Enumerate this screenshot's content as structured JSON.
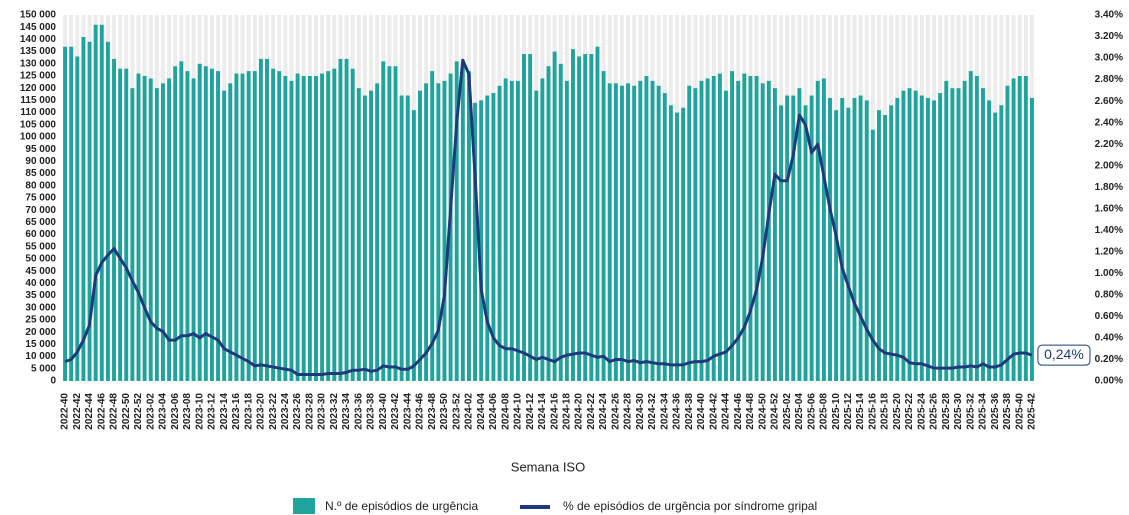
{
  "chart_data": {
    "type": "bar-line",
    "x_label": "Semana ISO",
    "categories": [
      "2022-40",
      null,
      "2022-42",
      null,
      "2022-44",
      null,
      "2022-46",
      null,
      "2022-48",
      null,
      "2022-50",
      null,
      "2022-52",
      null,
      "2023-02",
      null,
      "2023-04",
      null,
      "2023-06",
      null,
      "2023-08",
      null,
      "2023-10",
      null,
      "2023-12",
      null,
      "2023-14",
      null,
      "2023-16",
      null,
      "2023-18",
      null,
      "2023-20",
      null,
      "2023-22",
      null,
      "2023-24",
      null,
      "2023-26",
      null,
      "2023-28",
      null,
      "2023-30",
      null,
      "2023-32",
      null,
      "2023-34",
      null,
      "2023-36",
      null,
      "2023-38",
      null,
      "2023-40",
      null,
      "2023-42",
      null,
      "2023-44",
      null,
      "2023-46",
      null,
      "2023-48",
      null,
      "2023-50",
      null,
      "2023-52",
      null,
      "2024-02",
      null,
      "2024-04",
      null,
      "2024-06",
      null,
      "2024-08",
      null,
      "2024-10",
      null,
      "2024-12",
      null,
      "2024-14",
      null,
      "2024-16",
      null,
      "2024-18",
      null,
      "2024-20",
      null,
      "2024-22",
      null,
      "2024-24",
      null,
      "2024-26",
      null,
      "2024-28",
      null,
      "2024-30",
      null,
      "2024-32",
      null,
      "2024-34",
      null,
      "2024-36",
      null,
      "2024-38",
      null,
      "2024-40",
      null,
      "2024-42",
      null,
      "2024-44",
      null,
      "2024-46",
      null,
      "2024-48",
      null,
      "2024-50",
      null,
      "2024-52",
      null,
      "2025-02",
      null,
      "2025-04",
      null,
      "2025-06",
      null,
      "2025-08",
      null,
      "2025-10",
      null,
      "2025-12",
      null,
      "2025-14",
      null,
      "2025-16",
      null,
      "2025-18",
      null,
      "2025-20",
      null,
      "2025-22",
      null,
      "2025-24",
      null,
      "2025-26",
      null,
      "2025-28",
      null,
      "2025-30",
      null,
      "2025-32",
      null,
      "2025-34",
      null,
      "2025-36",
      null,
      "2025-38",
      null,
      "2025-40",
      null,
      "2025-42"
    ],
    "series": [
      {
        "name": "N.º de episódios de urgência",
        "color": "#1ea49c",
        "kind": "bar",
        "values": [
          137000,
          137000,
          133000,
          141000,
          139000,
          146000,
          146000,
          139000,
          132000,
          128000,
          128000,
          120000,
          126000,
          125000,
          124000,
          120000,
          122000,
          124000,
          129000,
          131000,
          127000,
          124000,
          130000,
          129000,
          128000,
          127000,
          119000,
          122000,
          126000,
          126000,
          127000,
          127000,
          132000,
          132000,
          128000,
          127000,
          125000,
          123000,
          126000,
          125000,
          125000,
          125000,
          126000,
          127000,
          128000,
          132000,
          132000,
          128000,
          120000,
          117000,
          119000,
          122000,
          131000,
          129000,
          129000,
          117000,
          117000,
          111000,
          119000,
          122000,
          127000,
          122000,
          123000,
          126000,
          131000,
          130000,
          127000,
          114000,
          115000,
          117000,
          118000,
          121000,
          124000,
          123000,
          123000,
          134000,
          134000,
          119000,
          124000,
          129000,
          135000,
          130000,
          123000,
          136000,
          133000,
          134000,
          134000,
          137000,
          127000,
          122000,
          122000,
          121000,
          122000,
          121000,
          123000,
          125000,
          123000,
          121000,
          118000,
          113000,
          110000,
          112000,
          121000,
          120000,
          123000,
          124000,
          125000,
          126000,
          119000,
          127000,
          123000,
          126000,
          125000,
          125000,
          122000,
          123000,
          120000,
          113000,
          117000,
          117000,
          120000,
          113000,
          117000,
          123000,
          124000,
          116000,
          111000,
          116000,
          112000,
          116000,
          117000,
          115000,
          103000,
          111000,
          109000,
          113000,
          116000,
          119000,
          120000,
          119000,
          117000,
          116000,
          115000,
          118000,
          123000,
          120000,
          120000,
          123000,
          127000,
          125000,
          120000,
          115000,
          110000,
          113000,
          121000,
          124000,
          125000,
          125000,
          116000
        ]
      },
      {
        "name": "% de episódios de urgência por síndrome gripal",
        "color": "#1f3a7c",
        "kind": "line",
        "axis": "y2",
        "values": [
          0.18,
          0.2,
          0.27,
          0.38,
          0.52,
          0.98,
          1.1,
          1.17,
          1.23,
          1.14,
          1.05,
          0.93,
          0.82,
          0.68,
          0.55,
          0.49,
          0.46,
          0.38,
          0.38,
          0.42,
          0.42,
          0.44,
          0.4,
          0.44,
          0.41,
          0.38,
          0.3,
          0.27,
          0.24,
          0.21,
          0.18,
          0.14,
          0.15,
          0.14,
          0.13,
          0.12,
          0.11,
          0.1,
          0.06,
          0.06,
          0.06,
          0.06,
          0.06,
          0.07,
          0.07,
          0.07,
          0.08,
          0.1,
          0.1,
          0.11,
          0.09,
          0.1,
          0.14,
          0.13,
          0.13,
          0.11,
          0.11,
          0.14,
          0.2,
          0.26,
          0.35,
          0.47,
          0.8,
          1.6,
          2.4,
          2.98,
          2.85,
          1.9,
          0.85,
          0.55,
          0.4,
          0.33,
          0.3,
          0.3,
          0.28,
          0.26,
          0.23,
          0.2,
          0.22,
          0.2,
          0.18,
          0.22,
          0.24,
          0.25,
          0.26,
          0.26,
          0.24,
          0.22,
          0.23,
          0.18,
          0.2,
          0.2,
          0.18,
          0.19,
          0.17,
          0.18,
          0.17,
          0.16,
          0.16,
          0.15,
          0.15,
          0.15,
          0.17,
          0.18,
          0.18,
          0.19,
          0.23,
          0.25,
          0.27,
          0.33,
          0.4,
          0.5,
          0.65,
          0.85,
          1.15,
          1.55,
          1.92,
          1.86,
          1.86,
          2.1,
          2.47,
          2.38,
          2.12,
          2.2,
          1.9,
          1.6,
          1.35,
          1.05,
          0.88,
          0.72,
          0.6,
          0.48,
          0.38,
          0.3,
          0.26,
          0.25,
          0.24,
          0.22,
          0.17,
          0.16,
          0.16,
          0.14,
          0.12,
          0.12,
          0.12,
          0.12,
          0.13,
          0.13,
          0.14,
          0.13,
          0.16,
          0.13,
          0.13,
          0.15,
          0.2,
          0.25,
          0.26,
          0.26,
          0.24
        ]
      }
    ],
    "annotation": "0,24%",
    "ylim": [
      0,
      150000
    ],
    "yticks": [
      0,
      {
        "value": 5000,
        "label": "5 000"
      },
      {
        "value": 10000,
        "label": "10 000"
      },
      {
        "value": 15000,
        "label": "15 000"
      },
      {
        "value": 20000,
        "label": "20 000"
      },
      {
        "value": 25000,
        "label": "25 000"
      },
      {
        "value": 30000,
        "label": "30 000"
      },
      {
        "value": 35000,
        "label": "35 000"
      },
      {
        "value": 40000,
        "label": "40 000"
      },
      {
        "value": 45000,
        "label": "45 000"
      },
      {
        "value": 50000,
        "label": "50 000"
      },
      {
        "value": 55000,
        "label": "55 000"
      },
      {
        "value": 60000,
        "label": "60 000"
      },
      {
        "value": 65000,
        "label": "65 000"
      },
      {
        "value": 70000,
        "label": "70 000"
      },
      {
        "value": 75000,
        "label": "75 000"
      },
      {
        "value": 80000,
        "label": "80 000"
      },
      {
        "value": 85000,
        "label": "85 000"
      },
      {
        "value": 90000,
        "label": "90 000"
      },
      {
        "value": 95000,
        "label": "95 000"
      },
      {
        "value": 100000,
        "label": "100 000"
      },
      {
        "value": 105000,
        "label": "105 000"
      },
      {
        "value": 110000,
        "label": "110 000"
      },
      {
        "value": 115000,
        "label": "115 000"
      },
      {
        "value": 120000,
        "label": "120 000"
      },
      {
        "value": 125000,
        "label": "125 000"
      },
      {
        "value": 130000,
        "label": "130 000"
      },
      {
        "value": 135000,
        "label": "135 000"
      },
      {
        "value": 140000,
        "label": "140 000"
      },
      {
        "value": 145000,
        "label": "145 000"
      },
      {
        "value": 150000,
        "label": "150 000"
      }
    ],
    "y2lim": [
      0,
      3.4
    ],
    "y2ticks": [
      {
        "value": 0,
        "label": "0.00%"
      },
      {
        "value": 0.2,
        "label": "0.20%"
      },
      {
        "value": 0.4,
        "label": "0.40%"
      },
      {
        "value": 0.6,
        "label": "0.60%"
      },
      {
        "value": 0.8,
        "label": "0.80%"
      },
      {
        "value": 1.0,
        "label": "1.00%"
      },
      {
        "value": 1.2,
        "label": "1.20%"
      },
      {
        "value": 1.4,
        "label": "1.40%"
      },
      {
        "value": 1.6,
        "label": "1.60%"
      },
      {
        "value": 1.8,
        "label": "1.80%"
      },
      {
        "value": 2.0,
        "label": "2.00%"
      },
      {
        "value": 2.2,
        "label": "2.20%"
      },
      {
        "value": 2.4,
        "label": "2.40%"
      },
      {
        "value": 2.6,
        "label": "2.60%"
      },
      {
        "value": 2.8,
        "label": "2.80%"
      },
      {
        "value": 3.0,
        "label": "3.00%"
      },
      {
        "value": 3.2,
        "label": "3.20%"
      },
      {
        "value": 3.4,
        "label": "3.40%"
      }
    ],
    "legend": "bottom"
  }
}
